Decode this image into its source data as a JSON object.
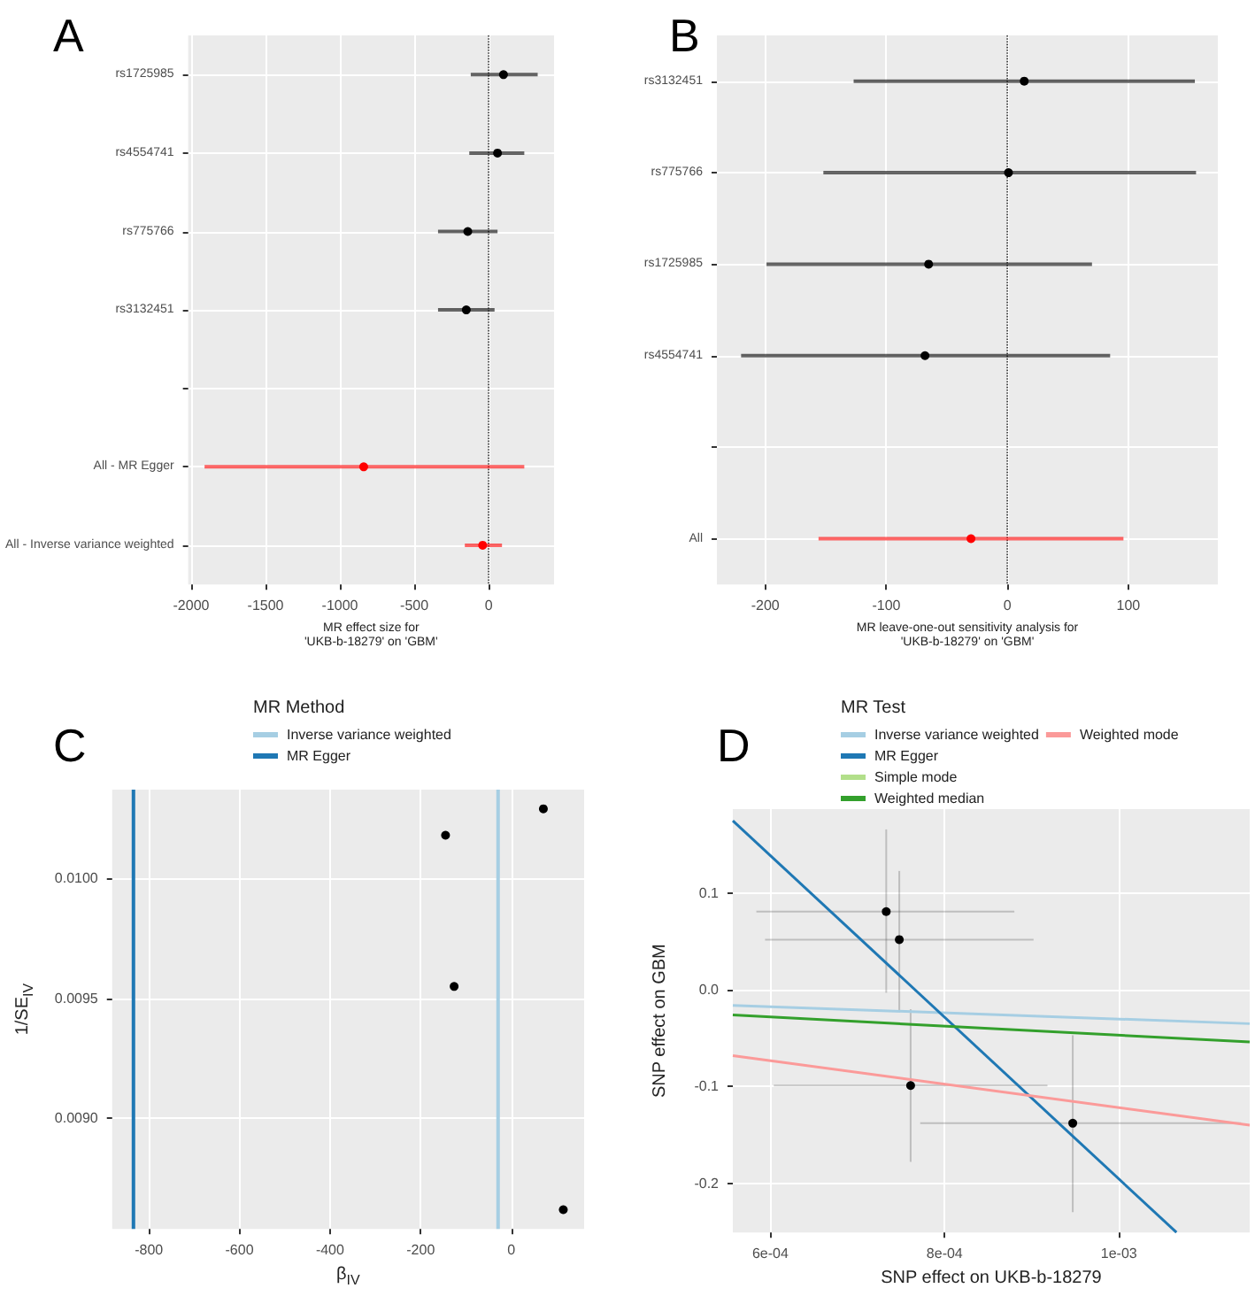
{
  "chart_data": [
    {
      "type": "scatter",
      "title": "A",
      "xlabel": "MR effect size for\n'UKB-b-18279' on 'GBM'",
      "orientation": "horizontal",
      "categories": [
        "rs1725985",
        "rs4554741",
        "rs775766",
        "rs3132451",
        null,
        "All - MR Egger",
        "All - Inverse variance weighted"
      ],
      "series": [
        {
          "color": "#000000",
          "values": [
            100,
            60,
            -140,
            -150,
            null,
            null,
            null
          ],
          "errors": [
            [
              -120,
              330
            ],
            [
              -130,
              240
            ],
            [
              -340,
              60
            ],
            [
              -340,
              40
            ],
            null,
            null,
            null
          ]
        },
        {
          "color": "#ff0000",
          "values": [
            null,
            null,
            null,
            null,
            null,
            -840,
            -40
          ],
          "errors": [
            null,
            null,
            null,
            null,
            null,
            [
              -1910,
              240
            ],
            [
              -160,
              90
            ]
          ]
        }
      ],
      "xlim": [
        -2020,
        440
      ],
      "xticks": [
        -2000,
        -1500,
        -1000,
        -500,
        0
      ],
      "ref_lines": [
        {
          "axis": "x",
          "value": 0,
          "line_style": "dotted",
          "color": "#333333"
        }
      ],
      "grid": true,
      "marker": "circle"
    },
    {
      "type": "scatter",
      "title": "B",
      "xlabel": "MR leave-one-out sensitivity analysis for\n'UKB-b-18279' on 'GBM'",
      "orientation": "horizontal",
      "categories": [
        "rs3132451",
        "rs775766",
        "rs1725985",
        "rs4554741",
        null,
        "All"
      ],
      "series": [
        {
          "color": "#000000",
          "values": [
            14,
            1,
            -65,
            -68,
            null,
            null
          ],
          "errors": [
            [
              -127,
              155
            ],
            [
              -152,
              156
            ],
            [
              -199,
              70
            ],
            [
              -220,
              85
            ],
            null,
            null
          ]
        },
        {
          "color": "#ff0000",
          "values": [
            null,
            null,
            null,
            null,
            null,
            -30
          ],
          "errors": [
            null,
            null,
            null,
            null,
            null,
            [
              -156,
              96
            ]
          ]
        }
      ],
      "xlim": [
        -240,
        174
      ],
      "xticks": [
        -200,
        -100,
        0,
        100
      ],
      "ref_lines": [
        {
          "axis": "x",
          "value": 0,
          "line_style": "dotted",
          "color": "#333333"
        }
      ],
      "grid": true,
      "marker": "circle"
    },
    {
      "type": "scatter",
      "title": "C",
      "xlabel": "β$_{IV}$",
      "ylabel": "1/SE$_{IV}$",
      "legend_title": "MR Method",
      "legend": "top",
      "series": [
        {
          "color": "#000000",
          "x": [
            -145,
            -126,
            71,
            115
          ],
          "values": [
            0.01018,
            0.00955,
            0.01029,
            0.00862
          ]
        }
      ],
      "xlim": [
        -881,
        161
      ],
      "xticks": [
        -800,
        -600,
        -400,
        -200,
        0
      ],
      "ylim": [
        0.00854,
        0.01037
      ],
      "yticks": [
        {
          "value": 0.009,
          "label": "0.0090"
        },
        {
          "value": 0.0095,
          "label": "0.0095"
        },
        {
          "value": 0.01,
          "label": "0.0100"
        }
      ],
      "ref_lines": [
        {
          "axis": "x",
          "value": -29,
          "label": "Inverse variance weighted",
          "color": "#a6cee3"
        },
        {
          "axis": "x",
          "value": -834,
          "label": "MR Egger",
          "color": "#1f78b4"
        }
      ],
      "grid": true,
      "marker": "circle"
    },
    {
      "type": "scatter",
      "title": "D",
      "xlabel": "SNP effect on UKB-b-18279",
      "ylabel": "SNP effect on GBM",
      "legend_title": "MR Test",
      "legend": "top",
      "series": [
        {
          "marker": "circle",
          "color": "#000000",
          "x": [
            0.000733,
            0.000748,
            0.000761,
            0.000947
          ],
          "values": [
            0.081,
            0.052,
            -0.099,
            -0.138
          ],
          "errors": [
            [
              -0.003,
              0.166
            ],
            [
              -0.022,
              0.123
            ],
            [
              -0.178,
              -0.02
            ],
            [
              -0.23,
              -0.047
            ]
          ],
          "xerrors": [
            [
              0.000584,
              0.00088
            ],
            [
              0.000594,
              0.000902
            ],
            [
              0.000604,
              0.000918
            ],
            [
              0.000772,
              0.00114
            ]
          ]
        },
        {
          "type": "line",
          "marker": "none",
          "name": "Inverse variance weighted",
          "color": "#a6cee3",
          "x": [
            0.000557,
            0.00115
          ],
          "values": [
            -0.016,
            -0.035
          ]
        },
        {
          "type": "line",
          "marker": "none",
          "name": "MR Egger",
          "color": "#1f78b4",
          "x": [
            0.000557,
            0.001066
          ],
          "values": [
            0.175,
            -0.251
          ]
        },
        {
          "type": "line",
          "marker": "none",
          "name": "Simple mode",
          "color": "#b2df8a",
          "values": [
            null,
            null
          ]
        },
        {
          "type": "line",
          "marker": "none",
          "name": "Weighted median",
          "color": "#33a02c",
          "x": [
            0.000557,
            0.00115
          ],
          "values": [
            -0.026,
            -0.054
          ]
        },
        {
          "type": "line",
          "marker": "none",
          "name": "Weighted mode",
          "color": "#fb9a99",
          "x": [
            0.000557,
            0.00115
          ],
          "values": [
            -0.068,
            -0.14
          ]
        }
      ],
      "xlim": [
        0.000557,
        0.00115
      ],
      "xticks": [
        {
          "value": 0.0006,
          "label": "6e-04"
        },
        {
          "value": 0.0008,
          "label": "8e-04"
        },
        {
          "value": 0.001,
          "label": "1e-03"
        }
      ],
      "ylim": [
        -0.251,
        0.187
      ],
      "yticks": [
        -0.2,
        -0.1,
        {
          "value": 0,
          "label": "0.0"
        },
        0.1
      ],
      "grid": true
    }
  ]
}
